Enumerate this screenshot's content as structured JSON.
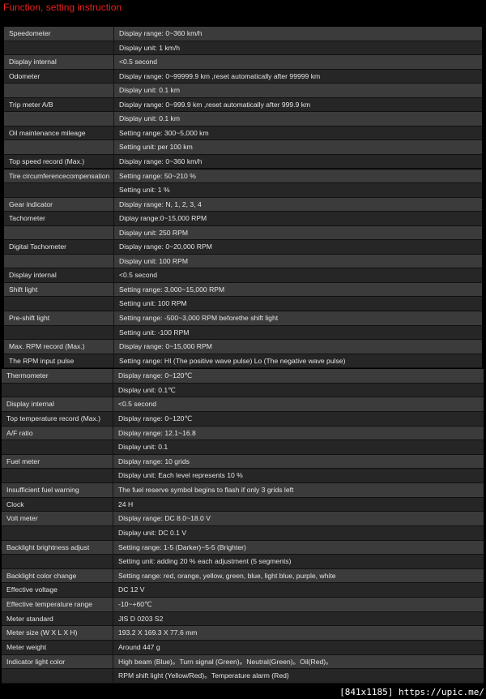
{
  "header": {
    "title": "Function, setting instruction"
  },
  "tables": [
    {
      "rows": [
        {
          "item": "Speedometer",
          "value": "Display range: 0~360 km/h"
        },
        {
          "value": "Display unit: 1 km/h"
        },
        {
          "item": "Display internal",
          "value": "<0.5 second"
        },
        {
          "item": "Odometer",
          "value": "Display range: 0~99999.9 km ,reset automatically after 99999 km"
        },
        {
          "value": "Display unit: 0.1 km"
        },
        {
          "item": "Trip meter A/B",
          "value": "Display range: 0~999.9 km ,reset automatically after 999.9 km"
        },
        {
          "value": "Display unit: 0.1 km"
        },
        {
          "item": "Oil maintenance mileage",
          "value": "Setting range: 300~5,000 km"
        },
        {
          "value": "Setting unit: per 100 km"
        },
        {
          "item": "Top speed record (Max.)",
          "value": "Display range: 0~360 km/h"
        },
        {
          "item": "Tire circumferencecompensation",
          "value": "Setting range: 50~210 %"
        },
        {
          "value": "Setting unit: 1 %"
        },
        {
          "item": "Gear indicator",
          "value": "Display range: N, 1, 2, 3, 4"
        },
        {
          "item": "Tachometer",
          "value": "Diplay range:0~15,000 RPM"
        },
        {
          "value": "Display unit: 250 RPM"
        },
        {
          "item": "Digital Tachometer",
          "value": "Display range: 0~20,000 RPM"
        },
        {
          "value": "Display unit: 100 RPM"
        },
        {
          "item": "Display internal",
          "value": "<0.5 second"
        },
        {
          "item": "Shift light",
          "value": "Setting range: 3,000~15,000 RPM"
        },
        {
          "value": "Setting unit: 100 RPM"
        },
        {
          "item": "Pre-shift light",
          "value": "Setting range: -500~3,000 RPM beforethe shift light"
        },
        {
          "value": "Setting unit: -100 RPM"
        },
        {
          "item": "Max. RPM record (Max.)",
          "value": "Display range: 0~15,000 RPM"
        },
        {
          "item": "The RPM input pulse",
          "value": "Setting range: HI (The positive wave pulse) Lo (The negative wave pulse)"
        }
      ]
    },
    {
      "rows": [
        {
          "item": "Thermometer",
          "value": "Display range: 0~120℃"
        },
        {
          "value": "Display unit: 0.1℃"
        },
        {
          "item": "Display internal",
          "value": "<0.5 second"
        },
        {
          "item": "Top temperature record (Max.)",
          "value": "Display range: 0~120℃"
        },
        {
          "item": "A/F ratio",
          "value": "Display range: 12.1~16.8"
        },
        {
          "value": "Display unit: 0.1"
        },
        {
          "item": "Fuel meter",
          "value": "Display range: 10 grids"
        },
        {
          "value": "Display unit: Each level represents 10 %"
        },
        {
          "item": "Insufficient fuel warning",
          "value": "The fuel reserve symbol begins to flash if only 3 grids left"
        },
        {
          "item": "Clock",
          "value": "24 H"
        },
        {
          "item": "Volt meter",
          "value": "Display range: DC 8.0~18.0 V"
        },
        {
          "value": "Display unit: DC 0.1 V"
        },
        {
          "item": "Backlight brightness adjust",
          "value": "Setting range: 1-5 (Darker)~5-5 (Brighter)"
        },
        {
          "value": "Setting unit: adding 20 % each adjustment (5 segments)"
        },
        {
          "item": "Backlight color change",
          "value": "Setting range: red, orange, yellow, green, blue, light blue, purple, white"
        },
        {
          "item": "Effective voltage",
          "value": "DC 12 V"
        },
        {
          "item": "Effective temperature range",
          "value": "-10~+60℃"
        },
        {
          "item": "Meter standard",
          "value": "JIS D 0203 S2"
        },
        {
          "item": "Meter size (W X L X H)",
          "value": "193.2 X 169.3 X 77.6 mm"
        },
        {
          "item": "Meter weight",
          "value": "Around 447 g"
        },
        {
          "item": "Indicator light color",
          "value": "High beam (Blue)。Turn signal (Green)。Neutral(Green)。Oil(Red)。"
        },
        {
          "value": "RPM shift light (Yellow/Red)。Temperature alarm (Red)"
        }
      ]
    }
  ],
  "watermark": "[841x1185] https://upic.me/"
}
